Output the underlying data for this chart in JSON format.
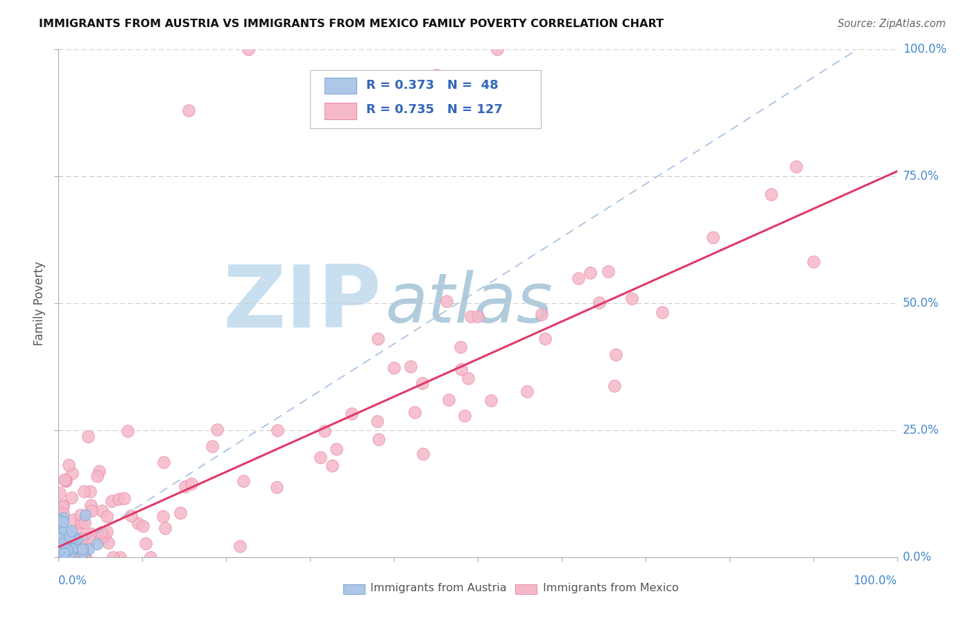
{
  "title": "IMMIGRANTS FROM AUSTRIA VS IMMIGRANTS FROM MEXICO FAMILY POVERTY CORRELATION CHART",
  "source": "Source: ZipAtlas.com",
  "ylabel": "Family Poverty",
  "austria_color": "#aec6e8",
  "austria_edge_color": "#7aaad0",
  "mexico_color": "#f5b8c8",
  "mexico_edge_color": "#e890a8",
  "trendline_austria_color": "#a0bce0",
  "trendline_mexico_color": "#e03868",
  "right_label_color": "#4488cc",
  "bottom_label_color": "#4488cc",
  "title_color": "#111111",
  "source_color": "#666666",
  "ylabel_color": "#555555",
  "grid_color": "#cccccc",
  "watermark_zip_color": "#c8dff0",
  "watermark_atlas_color": "#b0ccdc",
  "legend_text_color": "#3366bb",
  "bottom_legend_text_color": "#555555",
  "austria_trendline_intercept": 0.0,
  "austria_trendline_slope": 1.05,
  "mexico_trendline_intercept": 0.02,
  "mexico_trendline_slope": 0.74
}
